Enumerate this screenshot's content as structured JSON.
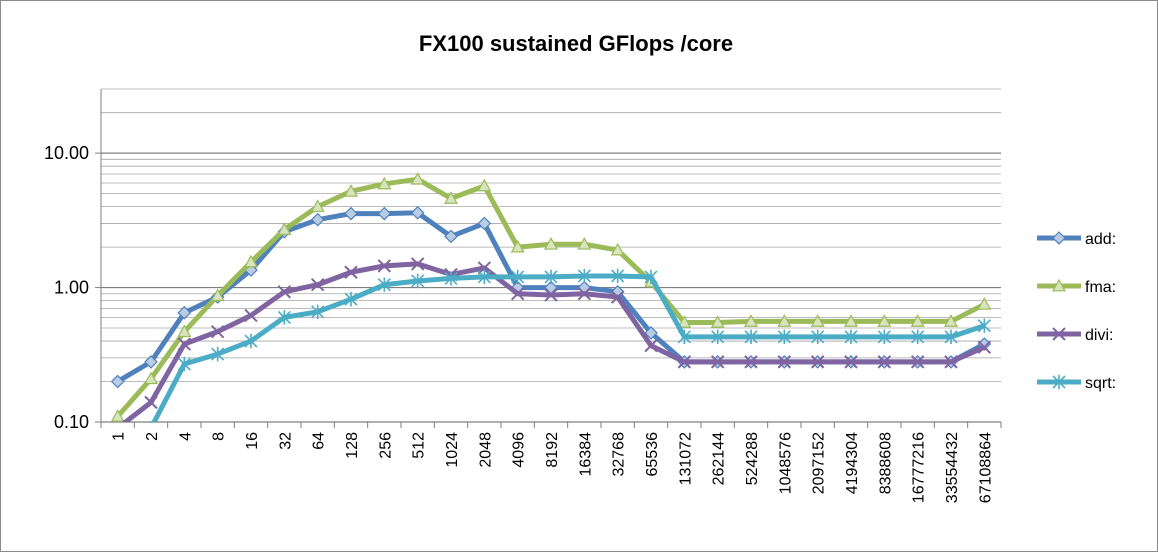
{
  "chart_data": {
    "type": "line",
    "title": "FX100 sustained GFlops /core",
    "xlabel": "",
    "ylabel": "",
    "y_scale": "log",
    "ylim": [
      0.1,
      30
    ],
    "y_ticks": [
      "0.10",
      "1.00",
      "10.00"
    ],
    "grid": true,
    "legend_position": "right",
    "categories": [
      "1",
      "2",
      "4",
      "8",
      "16",
      "32",
      "64",
      "128",
      "256",
      "512",
      "1024",
      "2048",
      "4096",
      "8192",
      "16384",
      "32768",
      "65536",
      "131072",
      "262144",
      "524288",
      "1048576",
      "2097152",
      "4194304",
      "8388608",
      "16777216",
      "33554432",
      "67108864"
    ],
    "series": [
      {
        "name": "add:",
        "color": "#4f81bd",
        "marker": "diamond",
        "values": [
          0.2,
          0.28,
          0.65,
          0.85,
          1.35,
          2.6,
          3.2,
          3.55,
          3.55,
          3.6,
          2.4,
          3.0,
          1.0,
          1.0,
          1.0,
          0.93,
          0.46,
          0.28,
          0.28,
          0.28,
          0.28,
          0.28,
          0.28,
          0.28,
          0.28,
          0.28,
          0.38
        ]
      },
      {
        "name": "fma:",
        "color": "#9bbb59",
        "marker": "triangle",
        "values": [
          0.11,
          0.21,
          0.47,
          0.87,
          1.55,
          2.7,
          4.0,
          5.2,
          5.9,
          6.4,
          4.6,
          5.7,
          2.0,
          2.1,
          2.1,
          1.9,
          1.1,
          0.55,
          0.55,
          0.56,
          0.56,
          0.56,
          0.56,
          0.56,
          0.56,
          0.56,
          0.75
        ]
      },
      {
        "name": "divi:",
        "color": "#8064a2",
        "marker": "x",
        "values": [
          0.09,
          0.14,
          0.38,
          0.47,
          0.62,
          0.93,
          1.05,
          1.3,
          1.45,
          1.5,
          1.25,
          1.4,
          0.9,
          0.88,
          0.9,
          0.85,
          0.37,
          0.28,
          0.28,
          0.28,
          0.28,
          0.28,
          0.28,
          0.28,
          0.28,
          0.28,
          0.36
        ]
      },
      {
        "name": "sqrt:",
        "color": "#4bacc6",
        "marker": "star",
        "values": [
          0.05,
          0.09,
          0.27,
          0.32,
          0.4,
          0.6,
          0.66,
          0.82,
          1.05,
          1.12,
          1.17,
          1.2,
          1.2,
          1.2,
          1.22,
          1.22,
          1.2,
          0.43,
          0.43,
          0.43,
          0.43,
          0.43,
          0.43,
          0.43,
          0.43,
          0.43,
          0.52
        ]
      }
    ]
  }
}
